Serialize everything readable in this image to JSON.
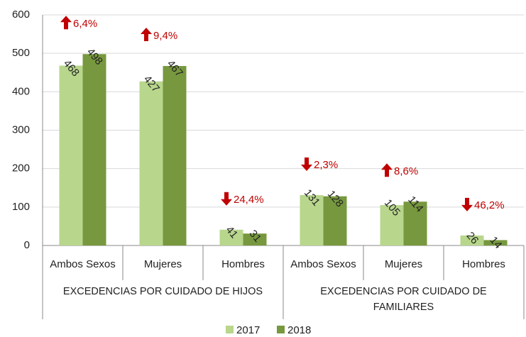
{
  "chart_data": {
    "type": "bar",
    "categories": [
      "Ambos Sexos",
      "Mujeres",
      "Hombres",
      "Ambos Sexos",
      "Mujeres",
      "Hombres"
    ],
    "groups": [
      "EXCEDENCIAS POR CUIDADO DE HIJOS",
      "EXCEDENCIAS POR CUIDADO DE FAMILIARES"
    ],
    "series": [
      {
        "name": "2017",
        "color": "#b8d68c",
        "values": [
          468,
          427,
          41,
          131,
          105,
          26
        ]
      },
      {
        "name": "2018",
        "color": "#77983e",
        "values": [
          498,
          467,
          31,
          128,
          114,
          14
        ]
      }
    ],
    "annotations": [
      "6,4%",
      "9,4%",
      "24,4%",
      "2,3%",
      "8,6%",
      "46,2%"
    ],
    "annotation_color": "#c00000",
    "ylim": [
      0,
      600
    ],
    "yticks": [
      0,
      100,
      200,
      300,
      400,
      500,
      600
    ],
    "grid": true,
    "legend": "bottom"
  }
}
